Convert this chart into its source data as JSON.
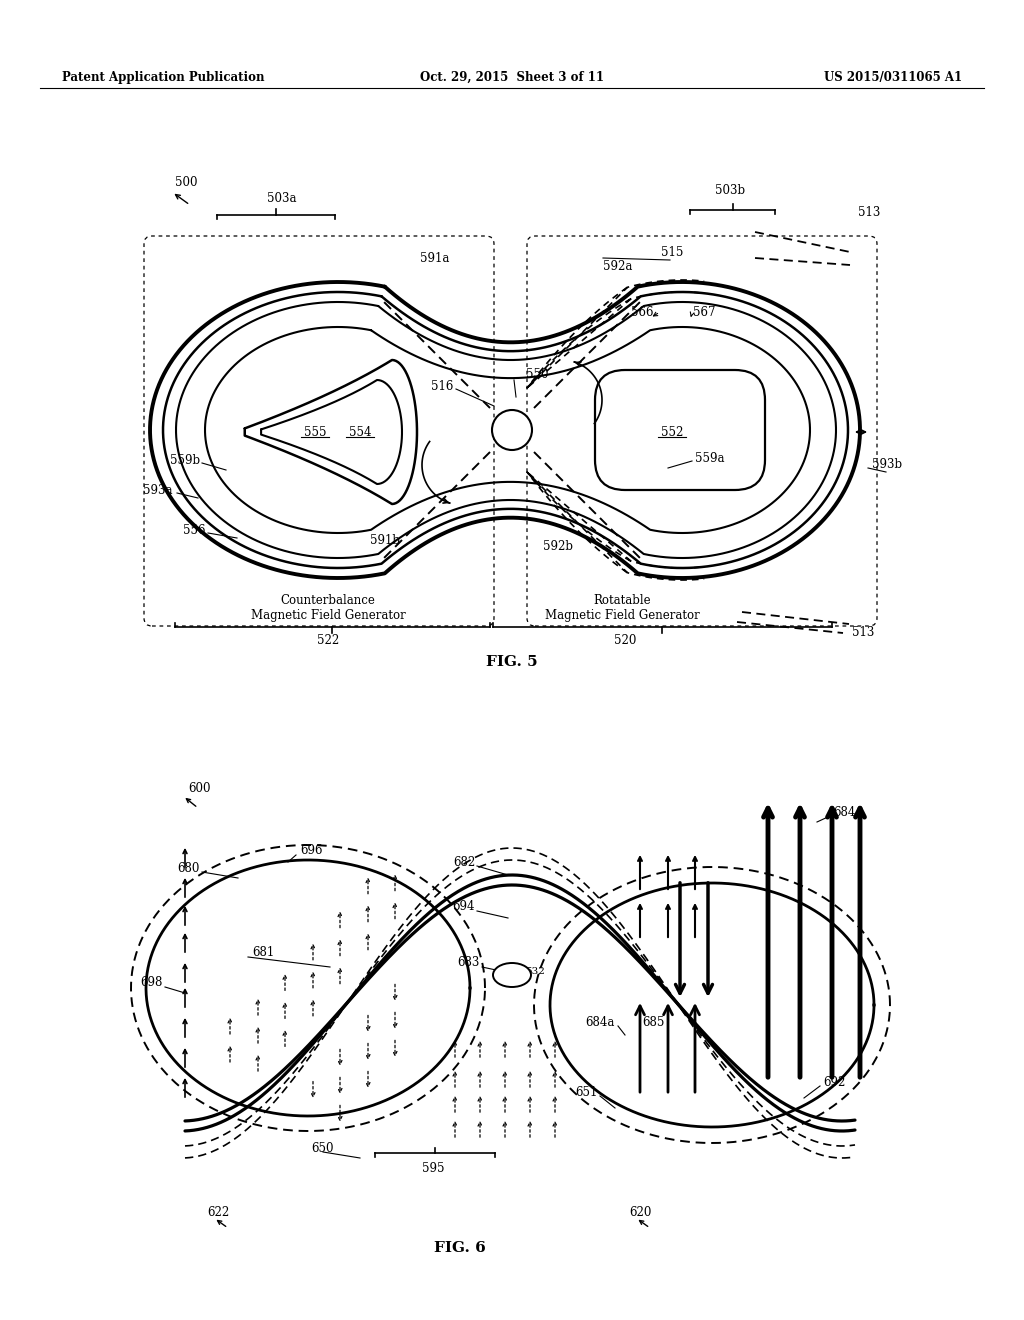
{
  "header_left": "Patent Application Publication",
  "header_center": "Oct. 29, 2015  Sheet 3 of 11",
  "header_right": "US 2015/0311065 A1",
  "fig5_label": "FIG. 5",
  "fig6_label": "FIG. 6",
  "bg": "#ffffff"
}
